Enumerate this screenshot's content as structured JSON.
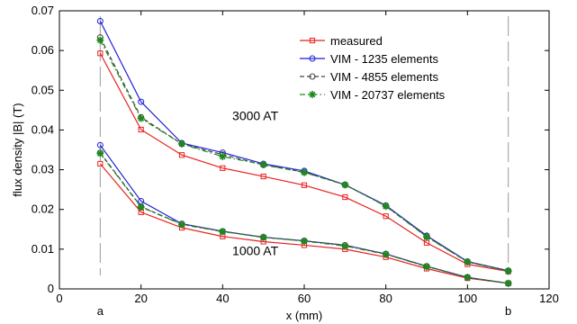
{
  "chart_data": {
    "type": "line",
    "xlabel": "x (mm)",
    "ylabel": "flux density |B| (T)",
    "xlim": [
      0,
      120
    ],
    "ylim": [
      0,
      0.07
    ],
    "xticks": [
      0,
      20,
      40,
      60,
      80,
      100,
      120
    ],
    "yticks": [
      0,
      0.01,
      0.02,
      0.03,
      0.04,
      0.05,
      0.06,
      0.07
    ],
    "xtick_labels": [
      "0",
      "20",
      "40",
      "60",
      "80",
      "100",
      "120"
    ],
    "ytick_labels": [
      "0",
      "0.01",
      "0.02",
      "0.03",
      "0.04",
      "0.05",
      "0.06",
      "0.07"
    ],
    "grid": false,
    "legend_position": "top-right",
    "vertical_markers": [
      {
        "x": 10,
        "label": "a"
      },
      {
        "x": 110,
        "label": "b"
      }
    ],
    "annotations": [
      {
        "text": "3000 AT",
        "x": 48,
        "y": 0.0425
      },
      {
        "text": "1000 AT",
        "x": 48,
        "y": 0.0085
      }
    ],
    "x": [
      10,
      20,
      30,
      40,
      50,
      60,
      70,
      80,
      90,
      100,
      110
    ],
    "series": [
      {
        "name": "measured",
        "color": "#e8201e",
        "marker": "square",
        "dash": "solid",
        "groups": [
          {
            "label": "3000 AT",
            "values": [
              0.0593,
              0.0401,
              0.0337,
              0.0304,
              0.0283,
              0.0261,
              0.0231,
              0.0183,
              0.0116,
              0.0062,
              0.0044
            ]
          },
          {
            "label": "1000 AT",
            "values": [
              0.0315,
              0.0193,
              0.0154,
              0.0132,
              0.0119,
              0.011,
              0.01,
              0.008,
              0.0051,
              0.0027,
              0.0014
            ]
          }
        ]
      },
      {
        "name": "VIM - 1235 elements",
        "color": "#1f1fd8",
        "marker": "circle",
        "dash": "solid",
        "groups": [
          {
            "label": "3000 AT",
            "values": [
              0.0674,
              0.0471,
              0.0367,
              0.0343,
              0.0315,
              0.0297,
              0.0262,
              0.021,
              0.0134,
              0.0069,
              0.0046
            ]
          },
          {
            "label": "1000 AT",
            "values": [
              0.0362,
              0.0221,
              0.0164,
              0.0145,
              0.013,
              0.0121,
              0.011,
              0.0088,
              0.0057,
              0.0029,
              0.0014
            ]
          }
        ]
      },
      {
        "name": "VIM - 4855 elements",
        "color": "#444444",
        "marker": "circle",
        "dash": "dashed",
        "groups": [
          {
            "label": "3000 AT",
            "values": [
              0.0633,
              0.0432,
              0.0365,
              0.0338,
              0.0312,
              0.0294,
              0.0262,
              0.0209,
              0.0132,
              0.0068,
              0.0045
            ]
          },
          {
            "label": "1000 AT",
            "values": [
              0.0343,
              0.0207,
              0.0163,
              0.0145,
              0.013,
              0.0121,
              0.011,
              0.0088,
              0.0057,
              0.0029,
              0.0014
            ]
          }
        ]
      },
      {
        "name": "VIM - 20737 elements",
        "color": "#1c8a1c",
        "marker": "star",
        "dash": "dashdot",
        "groups": [
          {
            "label": "3000 AT",
            "values": [
              0.0626,
              0.0429,
              0.0365,
              0.0333,
              0.0313,
              0.0293,
              0.0262,
              0.0208,
              0.0131,
              0.0068,
              0.0045
            ]
          },
          {
            "label": "1000 AT",
            "values": [
              0.0341,
              0.0206,
              0.0162,
              0.0144,
              0.013,
              0.012,
              0.0108,
              0.0087,
              0.0056,
              0.0029,
              0.0014
            ]
          }
        ]
      }
    ]
  }
}
